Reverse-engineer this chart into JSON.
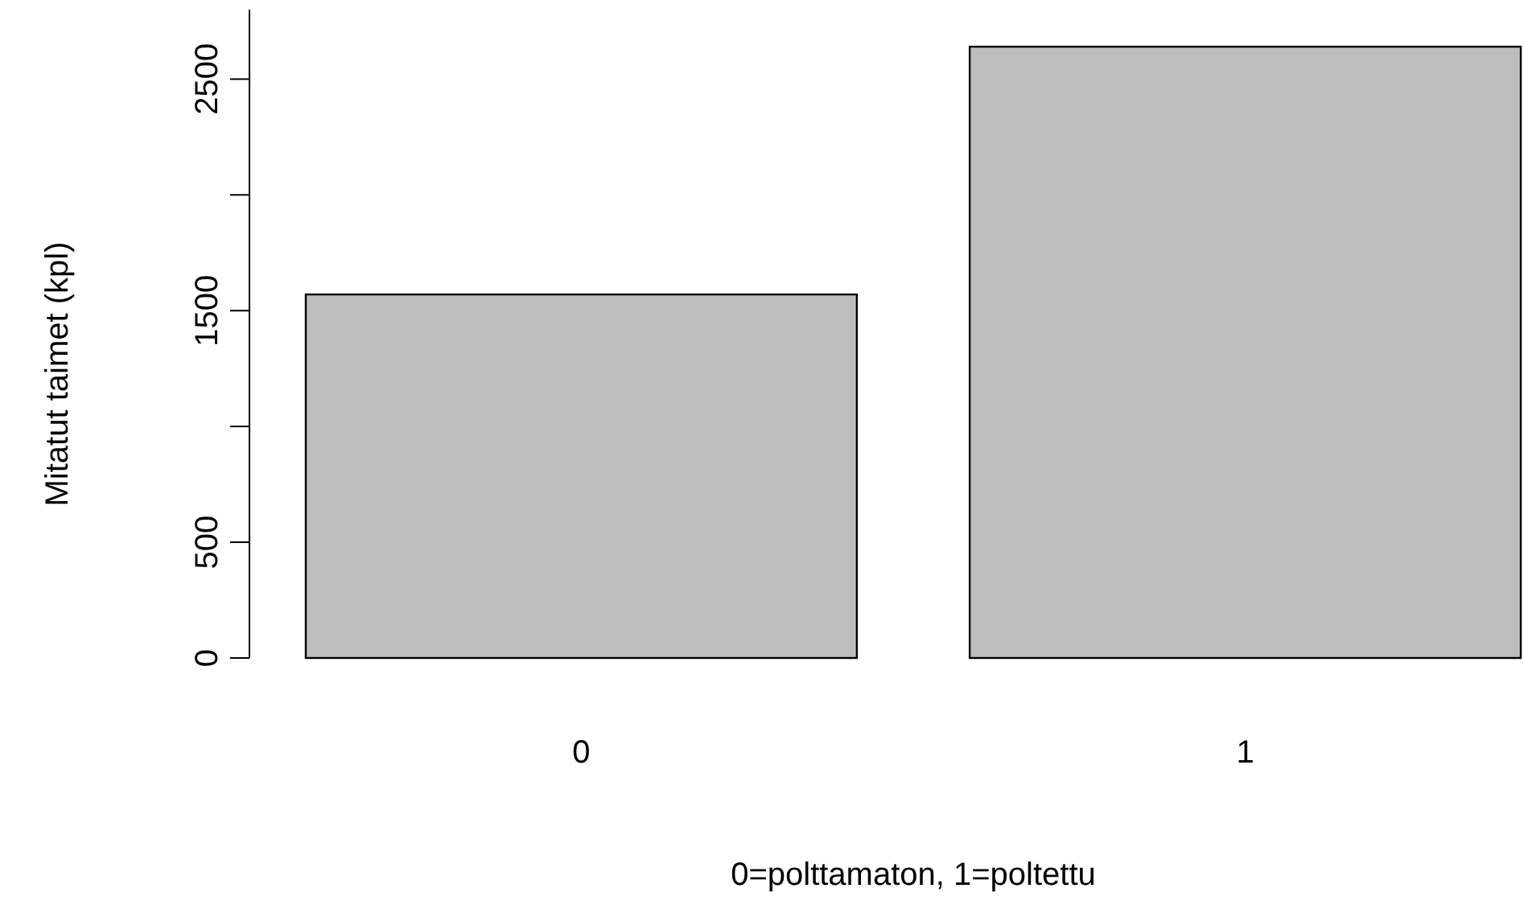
{
  "chart_data": {
    "type": "bar",
    "xlabel": "0=polttamaton, 1=poltettu",
    "ylabel": "Mitatut taimet (kpl)",
    "categories": [
      "0",
      "1"
    ],
    "values": [
      1570,
      2640
    ],
    "color": "#bebebe",
    "ylim": [
      0,
      2800
    ],
    "yticks": [
      0,
      500,
      {
        "value": 1000,
        "label": null
      },
      1500,
      {
        "value": 2000,
        "label": null
      },
      2500
    ],
    "grid": false
  }
}
